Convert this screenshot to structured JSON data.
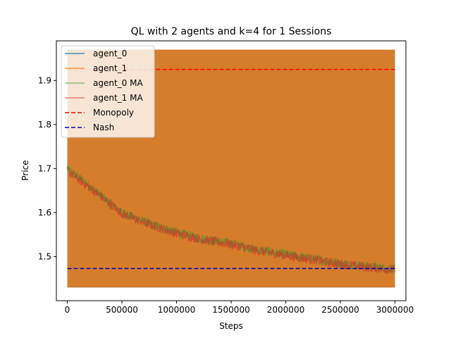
{
  "chart_data": {
    "type": "line",
    "title": "QL with 2 agents and k=4 for 1 Sessions",
    "xlabel": "Steps",
    "ylabel": "Price",
    "xlim": [
      -100000,
      3100000
    ],
    "ylim": [
      1.4,
      1.99
    ],
    "x_ticks": [
      0,
      500000,
      1000000,
      1500000,
      2000000,
      2500000,
      3000000
    ],
    "x_tick_labels": [
      "0",
      "500000",
      "1000000",
      "1500000",
      "2000000",
      "2500000",
      "3000000"
    ],
    "y_ticks": [
      1.5,
      1.6,
      1.7,
      1.8,
      1.9
    ],
    "y_tick_labels": [
      "1.5",
      "1.6",
      "1.7",
      "1.8",
      "1.9"
    ],
    "grid": false,
    "legend_position": "upper-left",
    "series": [
      {
        "name": "agent_0",
        "color": "#1f77b4",
        "style": "raw-oscillating",
        "x_range": [
          0,
          3000000
        ],
        "price_min": 1.43,
        "price_max": 1.97
      },
      {
        "name": "agent_1",
        "color": "#ff7f0e",
        "style": "raw-oscillating",
        "x_range": [
          0,
          3000000
        ],
        "price_min": 1.43,
        "price_max": 1.97
      },
      {
        "name": "agent_0 MA",
        "color": "#2ca02c",
        "style": "moving-average",
        "x": [
          0,
          250000,
          500000,
          750000,
          1000000,
          1250000,
          1500000,
          1750000,
          2000000,
          2250000,
          2500000,
          2750000,
          3000000
        ],
        "y": [
          1.7,
          1.65,
          1.6,
          1.575,
          1.555,
          1.54,
          1.53,
          1.515,
          1.505,
          1.495,
          1.485,
          1.478,
          1.472
        ]
      },
      {
        "name": "agent_1 MA",
        "color": "#d62728",
        "style": "moving-average",
        "x": [
          0,
          250000,
          500000,
          750000,
          1000000,
          1250000,
          1500000,
          1750000,
          2000000,
          2250000,
          2500000,
          2750000,
          3000000
        ],
        "y": [
          1.695,
          1.648,
          1.598,
          1.573,
          1.553,
          1.538,
          1.528,
          1.513,
          1.503,
          1.493,
          1.483,
          1.476,
          1.47
        ]
      },
      {
        "name": "Monopoly",
        "color": "#ff0000",
        "style": "dashed",
        "x": [
          0,
          3000000
        ],
        "y": [
          1.925,
          1.925
        ]
      },
      {
        "name": "Nash",
        "color": "#0000bb",
        "style": "dashed",
        "x": [
          0,
          3000000
        ],
        "y": [
          1.473,
          1.473
        ]
      }
    ]
  }
}
